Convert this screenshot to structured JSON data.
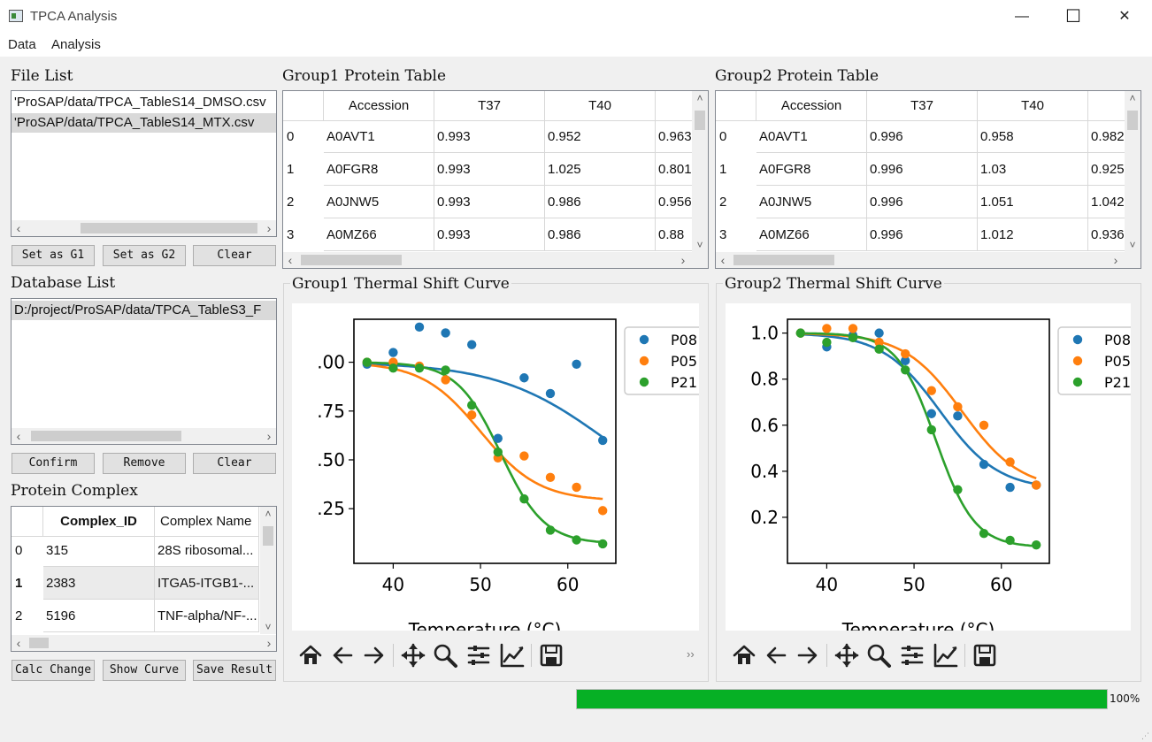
{
  "window": {
    "title": "TPCA Analysis",
    "minimize": "—",
    "maximize": "☐",
    "close": "✕"
  },
  "menu": [
    "Data",
    "Analysis"
  ],
  "file_list": {
    "label": "File List",
    "items": [
      "'ProSAP/data/TPCA_TableS14_DMSO.csv",
      "'ProSAP/data/TPCA_TableS14_MTX.csv"
    ],
    "selected_index": 1,
    "buttons": {
      "set_g1": "Set as G1",
      "set_g2": "Set as G2",
      "clear": "Clear"
    }
  },
  "database_list": {
    "label": "Database List",
    "items": [
      "D:/project/ProSAP/data/TPCA_TableS3_F"
    ],
    "buttons": {
      "confirm": "Confirm",
      "remove": "Remove",
      "clear": "Clear"
    }
  },
  "protein_complex": {
    "label": "Protein Complex",
    "columns": [
      "Complex_ID",
      "Complex Name"
    ],
    "rows": [
      {
        "idx": "0",
        "id": "315",
        "name": "28S ribosomal..."
      },
      {
        "idx": "1",
        "id": "2383",
        "name": "ITGA5-ITGB1-..."
      },
      {
        "idx": "2",
        "id": "5196",
        "name": "TNF-alpha/NF-..."
      }
    ],
    "buttons": {
      "calc": "Calc Change",
      "show": "Show Curve",
      "save": "Save Result"
    }
  },
  "group1_table": {
    "label": "Group1 Protein Table",
    "columns": [
      "Accession",
      "T37",
      "T40"
    ],
    "rows": [
      {
        "idx": "0",
        "acc": "A0AVT1",
        "t37": "0.993",
        "t40": "0.952",
        "t43": "0.963"
      },
      {
        "idx": "1",
        "acc": "A0FGR8",
        "t37": "0.993",
        "t40": "1.025",
        "t43": "0.801"
      },
      {
        "idx": "2",
        "acc": "A0JNW5",
        "t37": "0.993",
        "t40": "0.986",
        "t43": "0.956"
      },
      {
        "idx": "3",
        "acc": "A0MZ66",
        "t37": "0.993",
        "t40": "0.986",
        "t43": "0.88"
      }
    ]
  },
  "group2_table": {
    "label": "Group2 Protein Table",
    "columns": [
      "Accession",
      "T37",
      "T40"
    ],
    "rows": [
      {
        "idx": "0",
        "acc": "A0AVT1",
        "t37": "0.996",
        "t40": "0.958",
        "t43": "0.982"
      },
      {
        "idx": "1",
        "acc": "A0FGR8",
        "t37": "0.996",
        "t40": "1.03",
        "t43": "0.925"
      },
      {
        "idx": "2",
        "acc": "A0JNW5",
        "t37": "0.996",
        "t40": "1.051",
        "t43": "1.042"
      },
      {
        "idx": "3",
        "acc": "A0MZ66",
        "t37": "0.996",
        "t40": "1.012",
        "t43": "0.936"
      }
    ]
  },
  "group1_curve_label": "Group1 Thermal Shift Curve",
  "group2_curve_label": "Group2 Thermal Shift Curve",
  "colors": {
    "blue": "#1f77b4",
    "orange": "#ff7f0e",
    "green": "#2ca02c",
    "progress": "#06b025"
  },
  "toolbar_icons": [
    "home-icon",
    "back-icon",
    "forward-icon",
    "pan-icon",
    "zoom-icon",
    "configure-subplots-icon",
    "edit-axis-icon",
    "save-icon"
  ],
  "toolbar_overflow": "››",
  "progress": {
    "value": 1.0,
    "label": "100%"
  },
  "chart_data": [
    {
      "type": "scatter",
      "title": "",
      "xlabel": "Temperature (°C)",
      "ylabel": "",
      "xlim": [
        35.5,
        65.5
      ],
      "ylim": [
        -0.03,
        1.22
      ],
      "xticks": [
        "40",
        "50",
        "60"
      ],
      "yticks": [
        ".00",
        ".75",
        ".50",
        ".25"
      ],
      "ytick_values": [
        1.0,
        0.75,
        0.5,
        0.25
      ],
      "series": [
        {
          "name": "P08",
          "color": "#1f77b4",
          "x": [
            37,
            40,
            43,
            46,
            49,
            52,
            55,
            58,
            61,
            64
          ],
          "y": [
            0.99,
            1.05,
            1.18,
            1.15,
            1.09,
            0.61,
            0.92,
            0.84,
            0.99,
            0.6
          ],
          "fit": {
            "tm": 64.5,
            "b": 0.16,
            "min": 0.2
          }
        },
        {
          "name": "P05",
          "color": "#ff7f0e",
          "x": [
            37,
            40,
            43,
            46,
            49,
            52,
            55,
            58,
            61,
            64
          ],
          "y": [
            1.0,
            1.0,
            0.98,
            0.91,
            0.73,
            0.51,
            0.52,
            0.41,
            0.36,
            0.24
          ],
          "fit": {
            "tm": 50.0,
            "b": 0.3,
            "min": 0.29
          }
        },
        {
          "name": "P21",
          "color": "#2ca02c",
          "x": [
            37,
            40,
            43,
            46,
            49,
            52,
            55,
            58,
            61,
            64
          ],
          "y": [
            1.0,
            0.97,
            0.97,
            0.96,
            0.78,
            0.54,
            0.3,
            0.14,
            0.09,
            0.07
          ],
          "fit": {
            "tm": 52.3,
            "b": 0.4,
            "min": 0.07
          }
        }
      ]
    },
    {
      "type": "scatter",
      "title": "",
      "xlabel": "Temperature (°C)",
      "ylabel": "",
      "xlim": [
        35.5,
        65.5
      ],
      "ylim": [
        0.0,
        1.06
      ],
      "xticks": [
        "40",
        "50",
        "60"
      ],
      "yticks": [
        "1.0",
        "0.8",
        "0.6",
        "0.4",
        "0.2"
      ],
      "ytick_values": [
        1.0,
        0.8,
        0.6,
        0.4,
        0.2
      ],
      "series": [
        {
          "name": "P08",
          "color": "#1f77b4",
          "x": [
            37,
            40,
            43,
            46,
            49,
            52,
            55,
            58,
            61,
            64
          ],
          "y": [
            1.0,
            0.94,
            0.99,
            1.0,
            0.88,
            0.65,
            0.64,
            0.43,
            0.33,
            0.34
          ],
          "fit": {
            "tm": 53.0,
            "b": 0.3,
            "min": 0.32
          }
        },
        {
          "name": "P05",
          "color": "#ff7f0e",
          "x": [
            37,
            40,
            43,
            46,
            49,
            52,
            55,
            58,
            61,
            64
          ],
          "y": [
            1.0,
            1.02,
            1.02,
            0.96,
            0.91,
            0.75,
            0.68,
            0.6,
            0.44,
            0.34
          ],
          "fit": {
            "tm": 55.5,
            "b": 0.3,
            "min": 0.32
          }
        },
        {
          "name": "P21",
          "color": "#2ca02c",
          "x": [
            37,
            40,
            43,
            46,
            49,
            52,
            55,
            58,
            61,
            64
          ],
          "y": [
            1.0,
            0.96,
            0.98,
            0.93,
            0.84,
            0.58,
            0.32,
            0.13,
            0.1,
            0.08
          ],
          "fit": {
            "tm": 52.5,
            "b": 0.45,
            "min": 0.07
          }
        }
      ]
    }
  ]
}
